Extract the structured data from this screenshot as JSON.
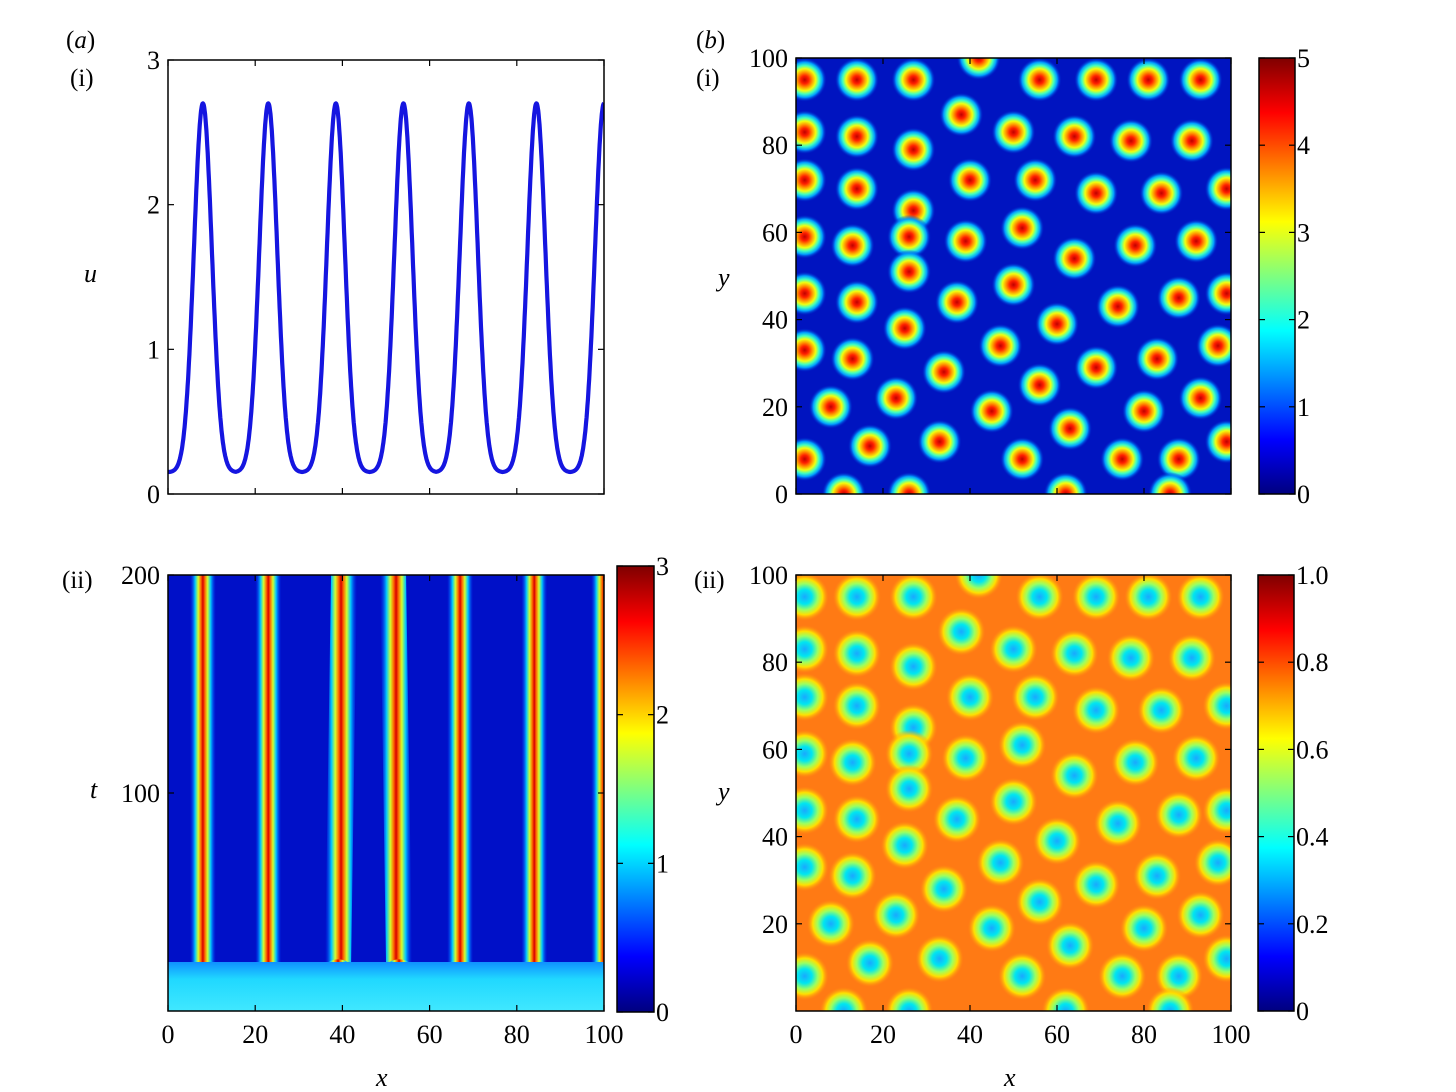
{
  "figure": {
    "label_a": "(a)",
    "label_b": "(b)",
    "sub_i_a": "(i)",
    "sub_i_b": "(i)",
    "sub_ii_a": "(ii)",
    "sub_ii_b": "(ii)"
  },
  "colors": {
    "line": "#1515e0",
    "jet": [
      "#00007f",
      "#0000ff",
      "#007fff",
      "#00ffff",
      "#7fff7f",
      "#ffff00",
      "#ff7f00",
      "#ff0000",
      "#7f0000"
    ]
  },
  "chart_data": [
    {
      "id": "a-i",
      "type": "line",
      "ylabel": "u",
      "xlim": [
        0,
        100
      ],
      "ylim": [
        0,
        3
      ],
      "yticks": [
        "0",
        "1",
        "2",
        "3"
      ],
      "xticks_minor": [
        0,
        20,
        40,
        60,
        80,
        100
      ],
      "series": [
        {
          "peaks_x": [
            8,
            23,
            38.5,
            54,
            69,
            84.5,
            100
          ],
          "peak_value": 2.7,
          "min_value": 0.15,
          "period": 15.4
        }
      ]
    },
    {
      "id": "a-ii",
      "type": "heatmap",
      "xlabel": "x",
      "ylabel": "t",
      "xlim": [
        0,
        100
      ],
      "ylim": [
        0,
        200
      ],
      "xticks": [
        "0",
        "20",
        "40",
        "60",
        "80",
        "100"
      ],
      "yticks": [
        "100",
        "200"
      ],
      "colorbar": {
        "range": [
          0,
          3
        ],
        "ticks": [
          "0",
          "1",
          "2",
          "3"
        ]
      },
      "stripe_centers_x": [
        8,
        23,
        39,
        53,
        67,
        84,
        100
      ],
      "stripe_value": 3,
      "onset_t": 20,
      "background_value": 0.1,
      "initial_value": 1.0
    },
    {
      "id": "b-i",
      "type": "heatmap",
      "ylabel": "y",
      "xlim": [
        0,
        100
      ],
      "ylim": [
        0,
        100
      ],
      "yticks": [
        "0",
        "20",
        "40",
        "60",
        "80",
        "100"
      ],
      "colorbar": {
        "range": [
          0,
          5
        ],
        "ticks": [
          "0",
          "1",
          "2",
          "3",
          "4",
          "5"
        ]
      },
      "spot_value": 5,
      "background_value": 0.2
    },
    {
      "id": "b-ii",
      "type": "heatmap",
      "xlabel": "x",
      "ylabel": "y",
      "xlim": [
        0,
        100
      ],
      "ylim": [
        0,
        100
      ],
      "xticks": [
        "0",
        "20",
        "40",
        "60",
        "80",
        "100"
      ],
      "yticks": [
        "20",
        "40",
        "60",
        "80",
        "100"
      ],
      "colorbar": {
        "range": [
          0,
          1
        ],
        "ticks": [
          "0",
          "0.2",
          "0.4",
          "0.6",
          "0.8",
          "1.0"
        ]
      },
      "spot_value": 0.3,
      "background_value": 0.8
    }
  ],
  "spots": [
    [
      2,
      95
    ],
    [
      14,
      95
    ],
    [
      27,
      95
    ],
    [
      42,
      100
    ],
    [
      56,
      95
    ],
    [
      69,
      95
    ],
    [
      81,
      95
    ],
    [
      93,
      95
    ],
    [
      2,
      83
    ],
    [
      14,
      82
    ],
    [
      27,
      79
    ],
    [
      38,
      87
    ],
    [
      50,
      83
    ],
    [
      64,
      82
    ],
    [
      77,
      81
    ],
    [
      91,
      81
    ],
    [
      2,
      72
    ],
    [
      14,
      70
    ],
    [
      27,
      65
    ],
    [
      40,
      72
    ],
    [
      55,
      72
    ],
    [
      69,
      69
    ],
    [
      84,
      69
    ],
    [
      99,
      70
    ],
    [
      2,
      59
    ],
    [
      13,
      57
    ],
    [
      26,
      59
    ],
    [
      39,
      58
    ],
    [
      52,
      61
    ],
    [
      64,
      54
    ],
    [
      78,
      57
    ],
    [
      92,
      58
    ],
    [
      2,
      46
    ],
    [
      14,
      44
    ],
    [
      26,
      51
    ],
    [
      37,
      44
    ],
    [
      50,
      48
    ],
    [
      60,
      39
    ],
    [
      74,
      43
    ],
    [
      88,
      45
    ],
    [
      99,
      46
    ],
    [
      2,
      33
    ],
    [
      13,
      31
    ],
    [
      25,
      38
    ],
    [
      47,
      34
    ],
    [
      69,
      29
    ],
    [
      83,
      31
    ],
    [
      97,
      34
    ],
    [
      8,
      20
    ],
    [
      23,
      22
    ],
    [
      34,
      28
    ],
    [
      45,
      19
    ],
    [
      56,
      25
    ],
    [
      80,
      19
    ],
    [
      93,
      22
    ],
    [
      2,
      8
    ],
    [
      17,
      11
    ],
    [
      33,
      12
    ],
    [
      52,
      8
    ],
    [
      63,
      15
    ],
    [
      75,
      8
    ],
    [
      88,
      8
    ],
    [
      99,
      12
    ],
    [
      11,
      0
    ],
    [
      26,
      0
    ],
    [
      62,
      0
    ],
    [
      86,
      0
    ]
  ]
}
